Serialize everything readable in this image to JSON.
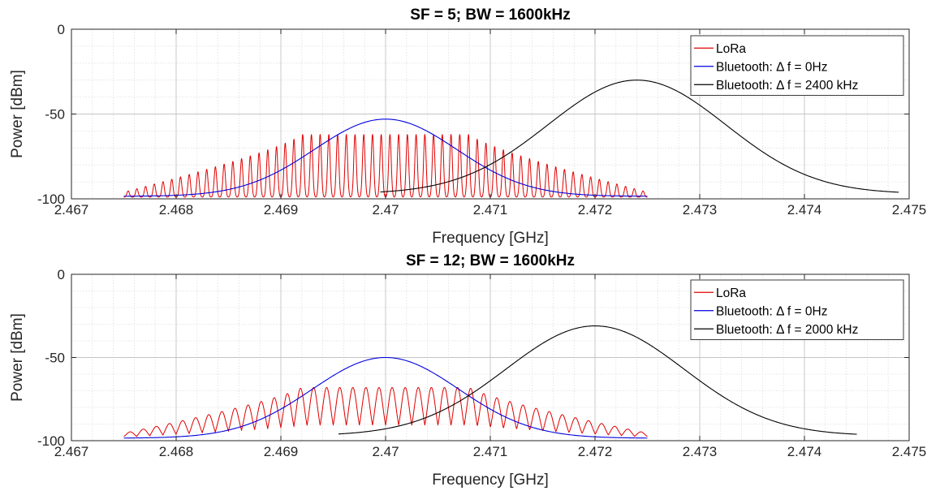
{
  "chart_data": [
    {
      "type": "line",
      "title": "SF = 5; BW = 1600kHz",
      "xlabel": "Frequency [GHz]",
      "ylabel": "Power [dBm]",
      "xlim": [
        2.467,
        2.475
      ],
      "ylim": [
        -100,
        0
      ],
      "xticks": [
        "2.467",
        "2.468",
        "2.469",
        "2.47",
        "2.471",
        "2.472",
        "2.473",
        "2.474",
        "2.475"
      ],
      "yticks": [
        "-100",
        "-50",
        "0"
      ],
      "grid": true,
      "legend_position": "top-right",
      "series": [
        {
          "name": "LoRa",
          "color": "#e00000",
          "kind": "lora_comb",
          "x_start": 2.4675,
          "x_end": 2.4725,
          "center": 2.47,
          "floor": -99,
          "peak_max": -62,
          "n_peaks": 60,
          "profile": "flat_top_taper",
          "peak_width_ghz": 1.2e-05
        },
        {
          "name": "Bluetooth: Δ f = 0Hz",
          "color": "#0000dd",
          "kind": "gaussian",
          "x_start": 2.4675,
          "x_end": 2.4725,
          "center": 2.47,
          "peak": -53,
          "floor": -98.5,
          "sigma_ghz": 0.00068
        },
        {
          "name": "Bluetooth: Δ f = 2400 kHz",
          "color": "#000000",
          "kind": "gaussian_tail",
          "x_start": 2.46995,
          "x_end": 2.4749,
          "center": 2.4724,
          "peak": -30,
          "floor": -97,
          "sigma_ghz": 0.00085
        }
      ]
    },
    {
      "type": "line",
      "title": "SF = 12; BW = 1600kHz",
      "xlabel": "Frequency [GHz]",
      "ylabel": "Power [dBm]",
      "xlim": [
        2.467,
        2.475
      ],
      "ylim": [
        -100,
        0
      ],
      "xticks": [
        "2.467",
        "2.468",
        "2.469",
        "2.47",
        "2.471",
        "2.472",
        "2.473",
        "2.474",
        "2.475"
      ],
      "yticks": [
        "-100",
        "-50",
        "0"
      ],
      "grid": true,
      "legend_position": "top-right",
      "series": [
        {
          "name": "LoRa",
          "color": "#e00000",
          "kind": "lora_comb",
          "x_start": 2.4675,
          "x_end": 2.4725,
          "center": 2.47,
          "floor": -98.5,
          "peak_max": -68,
          "n_peaks": 40,
          "profile": "flat_top_taper",
          "peak_width_ghz": 3.8e-05
        },
        {
          "name": "Bluetooth: Δ f = 0Hz",
          "color": "#0000dd",
          "kind": "gaussian",
          "x_start": 2.4675,
          "x_end": 2.4725,
          "center": 2.47,
          "peak": -50,
          "floor": -98.5,
          "sigma_ghz": 0.0007
        },
        {
          "name": "Bluetooth: Δ f = 2000 kHz",
          "color": "#000000",
          "kind": "gaussian_tail",
          "x_start": 2.46955,
          "x_end": 2.4745,
          "center": 2.472,
          "peak": -31,
          "floor": -97,
          "sigma_ghz": 0.00085
        }
      ]
    }
  ]
}
